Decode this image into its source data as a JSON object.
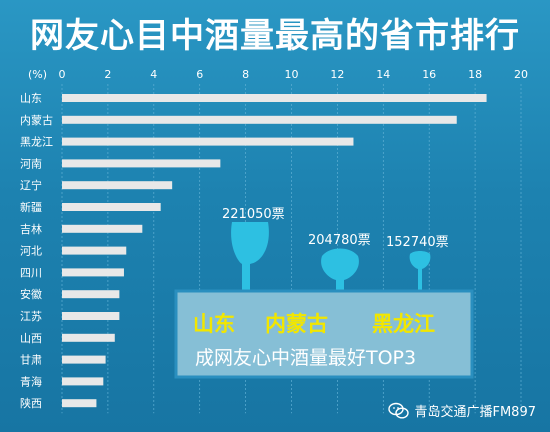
{
  "page": {
    "watermark": "青岛交通广播FM897",
    "watermark_icon": "wechat-icon"
  },
  "chart_data": {
    "type": "bar",
    "orientation": "horizontal",
    "title": "网友心目中酒量最高的省市排行",
    "unit_label": "(%)",
    "xlim": [
      0,
      20
    ],
    "x_ticks": [
      "0",
      "2",
      "4",
      "6",
      "8",
      "10",
      "12",
      "14",
      "16",
      "18",
      "20"
    ],
    "grid": true,
    "categories": [
      "山东",
      "内蒙古",
      "黑龙江",
      "河南",
      "辽宁",
      "新疆",
      "吉林",
      "河北",
      "四川",
      "安徽",
      "江苏",
      "山西",
      "甘肃",
      "青海",
      "陕西"
    ],
    "values": [
      18.5,
      17.2,
      12.7,
      6.9,
      4.8,
      4.3,
      3.5,
      2.8,
      2.7,
      2.5,
      2.5,
      2.3,
      1.9,
      1.8,
      1.5
    ],
    "colors": {
      "bar": "#e8e8e8",
      "axis_text": "#ffffff",
      "grid": "#5fb0d4",
      "highlight_box": "#8fc3d8",
      "highlight_text": "#f2e600",
      "glass": "#2dc0e2"
    },
    "annotations": [
      {
        "text": "221050票",
        "province": "山东"
      },
      {
        "text": "204780票",
        "province": "内蒙古"
      },
      {
        "text": "152740票",
        "province": "黑龙江"
      }
    ],
    "highlight": {
      "top3": [
        "山东",
        "内蒙古",
        "黑龙江"
      ],
      "caption": "成网友心中酒量最好TOP3"
    }
  }
}
